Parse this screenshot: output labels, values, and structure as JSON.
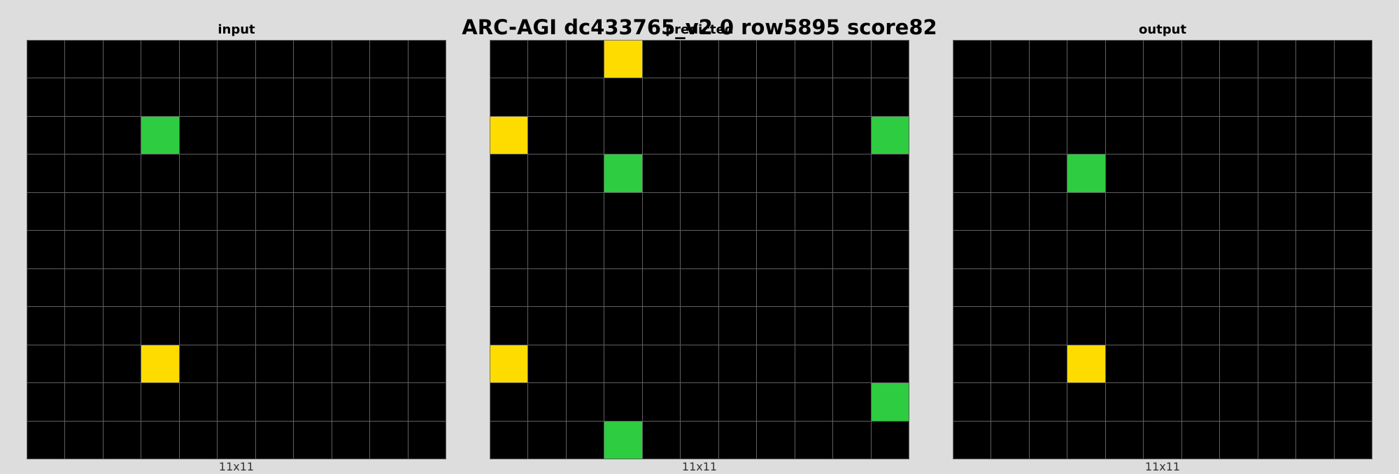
{
  "title": "ARC-AGI dc433765_v2 0 row5895 score82",
  "palette": {
    "0": "#000000",
    "3": "#2ecc40",
    "4": "#ffdc00"
  },
  "panels": [
    {
      "label": "input",
      "size_label": "11x11",
      "grid": [
        [
          0,
          0,
          0,
          0,
          0,
          0,
          0,
          0,
          0,
          0,
          0
        ],
        [
          0,
          0,
          0,
          0,
          0,
          0,
          0,
          0,
          0,
          0,
          0
        ],
        [
          0,
          0,
          0,
          3,
          0,
          0,
          0,
          0,
          0,
          0,
          0
        ],
        [
          0,
          0,
          0,
          0,
          0,
          0,
          0,
          0,
          0,
          0,
          0
        ],
        [
          0,
          0,
          0,
          0,
          0,
          0,
          0,
          0,
          0,
          0,
          0
        ],
        [
          0,
          0,
          0,
          0,
          0,
          0,
          0,
          0,
          0,
          0,
          0
        ],
        [
          0,
          0,
          0,
          0,
          0,
          0,
          0,
          0,
          0,
          0,
          0
        ],
        [
          0,
          0,
          0,
          0,
          0,
          0,
          0,
          0,
          0,
          0,
          0
        ],
        [
          0,
          0,
          0,
          4,
          0,
          0,
          0,
          0,
          0,
          0,
          0
        ],
        [
          0,
          0,
          0,
          0,
          0,
          0,
          0,
          0,
          0,
          0,
          0
        ],
        [
          0,
          0,
          0,
          0,
          0,
          0,
          0,
          0,
          0,
          0,
          0
        ]
      ]
    },
    {
      "label": "predicted",
      "size_label": "11x11",
      "grid": [
        [
          0,
          0,
          0,
          4,
          0,
          0,
          0,
          0,
          0,
          0,
          0
        ],
        [
          0,
          0,
          0,
          0,
          0,
          0,
          0,
          0,
          0,
          0,
          0
        ],
        [
          4,
          0,
          0,
          0,
          0,
          0,
          0,
          0,
          0,
          0,
          3
        ],
        [
          0,
          0,
          0,
          3,
          0,
          0,
          0,
          0,
          0,
          0,
          0
        ],
        [
          0,
          0,
          0,
          0,
          0,
          0,
          0,
          0,
          0,
          0,
          0
        ],
        [
          0,
          0,
          0,
          0,
          0,
          0,
          0,
          0,
          0,
          0,
          0
        ],
        [
          0,
          0,
          0,
          0,
          0,
          0,
          0,
          0,
          0,
          0,
          0
        ],
        [
          0,
          0,
          0,
          0,
          0,
          0,
          0,
          0,
          0,
          0,
          0
        ],
        [
          4,
          0,
          0,
          0,
          0,
          0,
          0,
          0,
          0,
          0,
          0
        ],
        [
          0,
          0,
          0,
          0,
          0,
          0,
          0,
          0,
          0,
          0,
          3
        ],
        [
          0,
          0,
          0,
          3,
          0,
          0,
          0,
          0,
          0,
          0,
          0
        ]
      ]
    },
    {
      "label": "output",
      "size_label": "11x11",
      "grid": [
        [
          0,
          0,
          0,
          0,
          0,
          0,
          0,
          0,
          0,
          0,
          0
        ],
        [
          0,
          0,
          0,
          0,
          0,
          0,
          0,
          0,
          0,
          0,
          0
        ],
        [
          0,
          0,
          0,
          0,
          0,
          0,
          0,
          0,
          0,
          0,
          0
        ],
        [
          0,
          0,
          0,
          3,
          0,
          0,
          0,
          0,
          0,
          0,
          0
        ],
        [
          0,
          0,
          0,
          0,
          0,
          0,
          0,
          0,
          0,
          0,
          0
        ],
        [
          0,
          0,
          0,
          0,
          0,
          0,
          0,
          0,
          0,
          0,
          0
        ],
        [
          0,
          0,
          0,
          0,
          0,
          0,
          0,
          0,
          0,
          0,
          0
        ],
        [
          0,
          0,
          0,
          0,
          0,
          0,
          0,
          0,
          0,
          0,
          0
        ],
        [
          0,
          0,
          0,
          4,
          0,
          0,
          0,
          0,
          0,
          0,
          0
        ],
        [
          0,
          0,
          0,
          0,
          0,
          0,
          0,
          0,
          0,
          0,
          0
        ],
        [
          0,
          0,
          0,
          0,
          0,
          0,
          0,
          0,
          0,
          0,
          0
        ]
      ]
    }
  ]
}
